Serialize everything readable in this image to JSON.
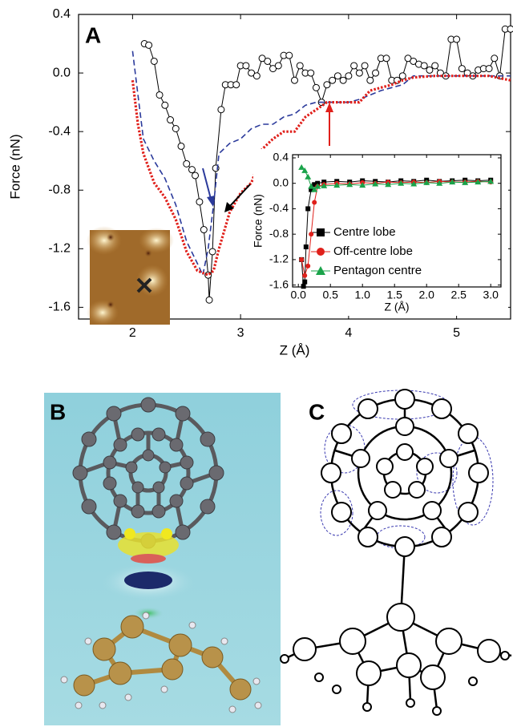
{
  "chart_data": [
    {
      "type": "line",
      "panel_label": "A",
      "x_label": "Z (Å)",
      "y_label": "Force (nN)",
      "xlim": [
        1.5,
        5.5
      ],
      "ylim": [
        -1.68,
        0.4
      ],
      "xticks": [
        2,
        3,
        4,
        5
      ],
      "yticks": [
        0.4,
        {
          "value": 0,
          "label": "0.0"
        },
        -0.4,
        -0.8,
        -1.2,
        -1.6
      ],
      "series": [
        {
          "color": "#000000",
          "line_style": "solid",
          "marker": "circle",
          "x": [
            2.11,
            2.15,
            2.2,
            2.25,
            2.3,
            2.35,
            2.4,
            2.45,
            2.5,
            2.55,
            2.58,
            2.62,
            2.66,
            2.7,
            2.71,
            2.74,
            2.77,
            2.82,
            2.86,
            2.91,
            2.96,
            3.0,
            3.05,
            3.1,
            3.15,
            3.2,
            3.25,
            3.3,
            3.35,
            3.4,
            3.45,
            3.5,
            3.55,
            3.6,
            3.65,
            3.7,
            3.75,
            3.8,
            3.85,
            3.9,
            3.95,
            4.0,
            4.05,
            4.1,
            4.15,
            4.2,
            4.25,
            4.3,
            4.35,
            4.4,
            4.45,
            4.5,
            4.55,
            4.6,
            4.65,
            4.7,
            4.75,
            4.8,
            4.85,
            4.9,
            4.95,
            5.0,
            5.05,
            5.1,
            5.15,
            5.2,
            5.25,
            5.3,
            5.35,
            5.4,
            5.45,
            5.5
          ],
          "values": [
            0.2,
            0.19,
            0.08,
            -0.15,
            -0.22,
            -0.32,
            -0.38,
            -0.5,
            -0.62,
            -0.66,
            -0.7,
            -0.88,
            -1.07,
            -1.38,
            -1.55,
            -1.22,
            -0.65,
            -0.25,
            -0.08,
            -0.08,
            -0.08,
            0.05,
            0.05,
            0.0,
            -0.02,
            0.1,
            0.08,
            0.03,
            0.05,
            0.12,
            0.12,
            -0.05,
            0.05,
            0.0,
            0.0,
            -0.1,
            -0.2,
            -0.08,
            -0.05,
            -0.02,
            -0.05,
            -0.02,
            0.05,
            0.0,
            0.05,
            -0.05,
            0.0,
            0.1,
            0.1,
            -0.05,
            -0.05,
            -0.02,
            0.1,
            0.08,
            0.06,
            0.05,
            0.02,
            0.05,
            0.0,
            -0.02,
            0.23,
            0.23,
            0.03,
            0.0,
            -0.02,
            0.02,
            0.03,
            0.03,
            0.1,
            -0.02,
            0.3,
            0.3
          ]
        },
        {
          "color": "#2b3a9b",
          "line_style": "dashed",
          "x": [
            2.0,
            2.05,
            2.1,
            2.2,
            2.3,
            2.4,
            2.5,
            2.6,
            2.65,
            2.7,
            2.75,
            2.8,
            2.9,
            3.0,
            3.1,
            3.2,
            3.3,
            3.4,
            3.5,
            3.6,
            3.7,
            3.8,
            3.9,
            4.0,
            4.1,
            4.2,
            4.3,
            4.4,
            4.5,
            4.6,
            4.7,
            4.8,
            5.0,
            5.2,
            5.5
          ],
          "values": [
            0.15,
            -0.15,
            -0.45,
            -0.6,
            -0.72,
            -0.9,
            -1.15,
            -1.3,
            -1.38,
            -1.2,
            -0.9,
            -0.55,
            -0.48,
            -0.45,
            -0.38,
            -0.35,
            -0.35,
            -0.3,
            -0.28,
            -0.22,
            -0.2,
            -0.2,
            -0.2,
            -0.2,
            -0.18,
            -0.15,
            -0.12,
            -0.1,
            -0.08,
            -0.02,
            -0.02,
            -0.02,
            -0.02,
            -0.02,
            -0.02
          ]
        },
        {
          "color": "#e0201b",
          "line_style": "dotted",
          "x": [
            2.0,
            2.05,
            2.1,
            2.2,
            2.3,
            2.4,
            2.5,
            2.6,
            2.7,
            2.75,
            2.8,
            2.9,
            3.0,
            3.1,
            3.15,
            3.2,
            3.3,
            3.4,
            3.5,
            3.6,
            3.7,
            3.8,
            3.9,
            4.0,
            4.1,
            4.2,
            4.3,
            4.4,
            4.5,
            4.6,
            4.8,
            5.0,
            5.3,
            5.5
          ],
          "values": [
            -0.05,
            -0.35,
            -0.55,
            -0.75,
            -0.85,
            -1.0,
            -1.22,
            -1.35,
            -1.38,
            -1.35,
            -1.2,
            -0.95,
            -0.82,
            -0.75,
            -0.65,
            -0.52,
            -0.45,
            -0.4,
            -0.4,
            -0.3,
            -0.25,
            -0.2,
            -0.2,
            -0.2,
            -0.2,
            -0.12,
            -0.1,
            -0.08,
            -0.05,
            -0.03,
            -0.02,
            -0.02,
            -0.02,
            -0.05
          ]
        }
      ]
    },
    {
      "type": "line",
      "x_label": "Z (Å)",
      "y_label": "Force (nN)",
      "xlim": [
        -0.09,
        3.16
      ],
      "ylim": [
        -1.63,
        0.45
      ],
      "xticks": [
        {
          "value": 0,
          "label": "0.0"
        },
        0.5,
        {
          "value": 1,
          "label": "1.0"
        },
        1.5,
        {
          "value": 2,
          "label": "2.0"
        },
        2.5,
        {
          "value": 3,
          "label": "3.0"
        }
      ],
      "yticks": [
        0.4,
        {
          "value": 0,
          "label": "0.0"
        },
        -0.4,
        -0.8,
        -1.2,
        -1.6
      ],
      "legend": "lower right",
      "series": [
        {
          "name": "Centre lobe",
          "color": "#000000",
          "marker": "square",
          "x": [
            0.05,
            0.08,
            0.1,
            0.12,
            0.15,
            0.2,
            0.25,
            0.3,
            0.4,
            0.6,
            0.8,
            1.0,
            1.2,
            1.4,
            1.6,
            1.8,
            2.0,
            2.2,
            2.4,
            2.6,
            2.8,
            3.0
          ],
          "values": [
            -1.2,
            -1.62,
            -1.55,
            -1.0,
            -0.4,
            -0.1,
            -0.02,
            0.0,
            0.02,
            0.03,
            0.02,
            0.04,
            0.03,
            0.02,
            0.04,
            0.03,
            0.05,
            0.03,
            0.04,
            0.05,
            0.04,
            0.05
          ]
        },
        {
          "name": "Off-centre lobe",
          "color": "#e0201b",
          "marker": "circle",
          "x": [
            0.05,
            0.1,
            0.15,
            0.2,
            0.25,
            0.3,
            0.4,
            0.6,
            0.8,
            1.0,
            1.2,
            1.4,
            1.6,
            1.8,
            2.0,
            2.2,
            2.4,
            2.6,
            2.8,
            3.0
          ],
          "values": [
            -1.2,
            -1.45,
            -1.3,
            -0.8,
            -0.3,
            -0.05,
            -0.02,
            0.0,
            -0.01,
            0.01,
            0.0,
            0.02,
            0.01,
            0.02,
            0.01,
            0.03,
            0.02,
            0.02,
            0.03,
            0.02
          ]
        },
        {
          "name": "Pentagon centre",
          "color": "#1aa34a",
          "marker": "triangle",
          "x": [
            0.05,
            0.1,
            0.15,
            0.2,
            0.25,
            0.3,
            0.4,
            0.6,
            0.8,
            1.0,
            1.2,
            1.4,
            1.6,
            1.8,
            2.0,
            2.2,
            2.4,
            2.6,
            2.8,
            3.0
          ],
          "values": [
            0.25,
            0.2,
            0.1,
            -0.05,
            -0.1,
            -0.05,
            -0.04,
            -0.03,
            -0.02,
            -0.03,
            -0.01,
            -0.02,
            0.0,
            -0.01,
            0.01,
            0.0,
            0.02,
            0.01,
            0.02,
            0.03
          ]
        }
      ]
    }
  ],
  "panels": {
    "b_label": "B",
    "c_label": "C"
  }
}
